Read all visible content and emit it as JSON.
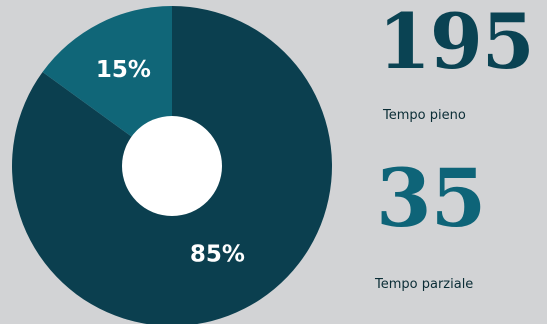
{
  "chart_data": {
    "type": "pie",
    "variant": "donut",
    "categories": [
      "Tempo pieno",
      "Tempo parziale"
    ],
    "values": [
      85,
      15
    ],
    "slice_labels": [
      "85%",
      "15%"
    ],
    "colors": [
      "#0b3f4f",
      "#106678"
    ],
    "title": "",
    "legend": "none"
  },
  "stats": [
    {
      "value": "195",
      "label": "Tempo pieno",
      "color": "#0a4353"
    },
    {
      "value": "35",
      "label": "Tempo parziale",
      "color": "#0e6478"
    }
  ]
}
